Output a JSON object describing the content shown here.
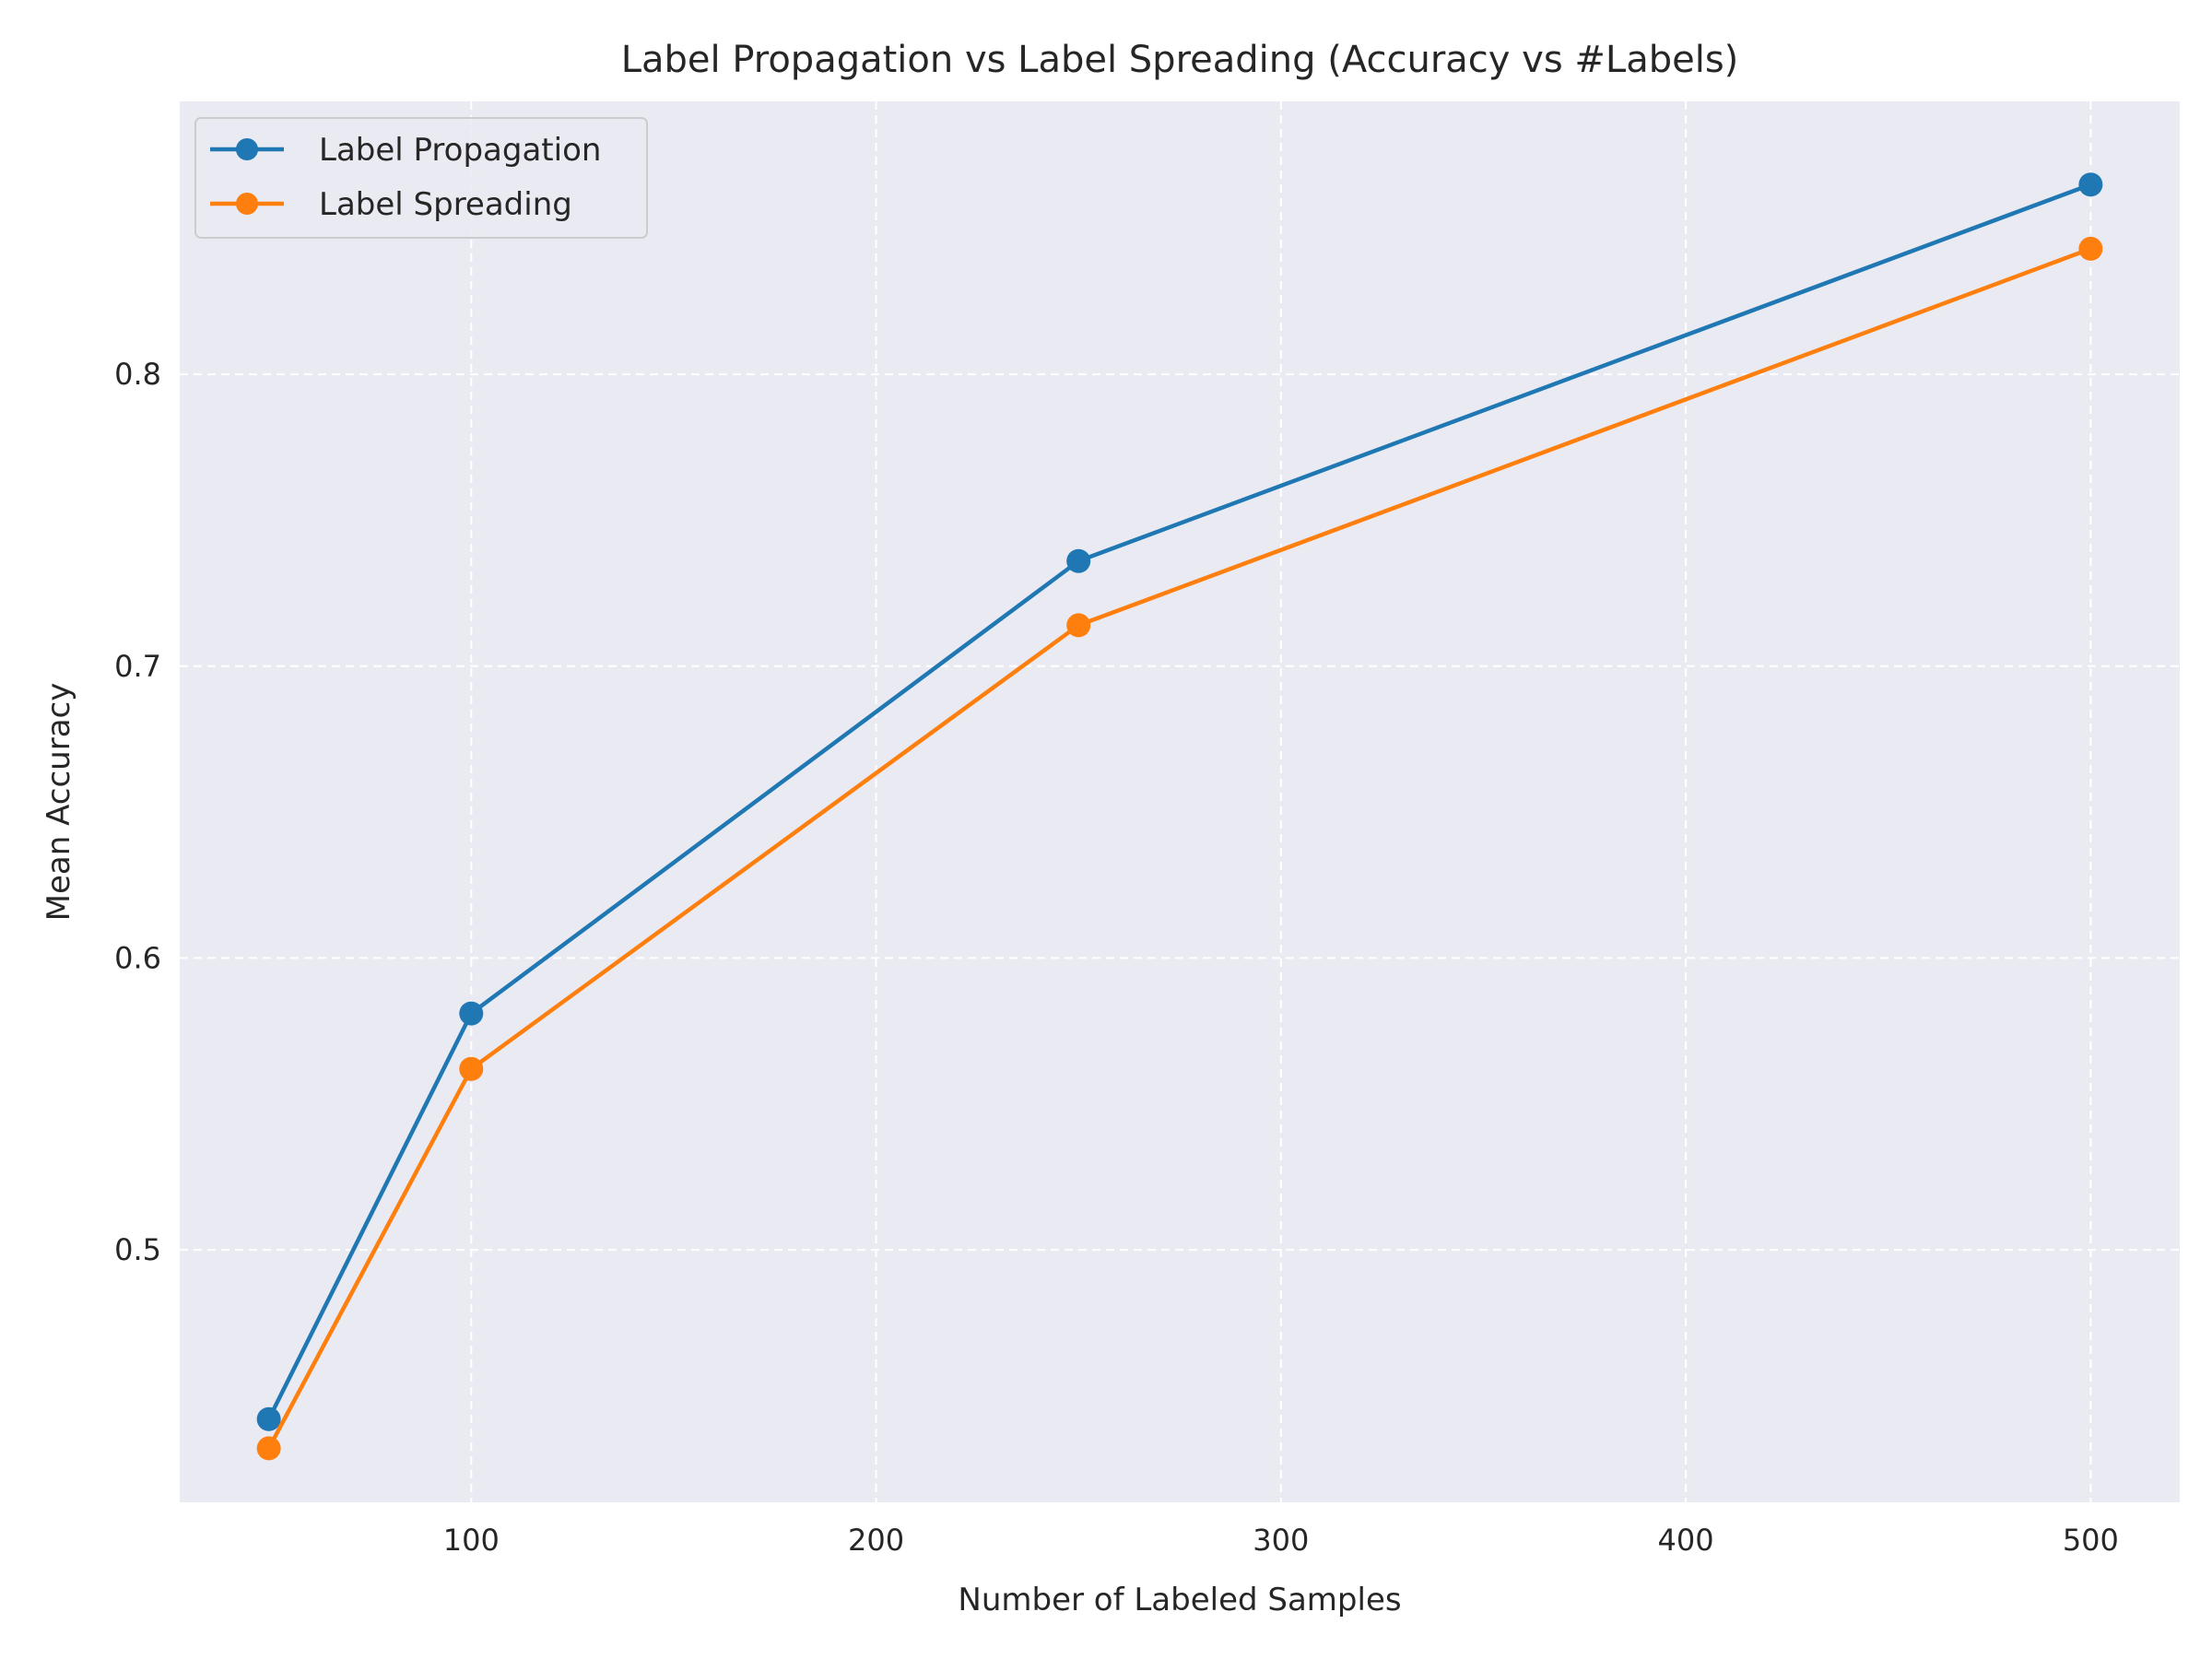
{
  "chart_data": {
    "type": "line",
    "title": "Label Propagation vs Label Spreading (Accuracy vs #Labels)",
    "xlabel": "Number of Labeled Samples",
    "ylabel": "Mean Accuracy",
    "x": [
      50,
      100,
      250,
      500
    ],
    "series": [
      {
        "name": "Label Propagation",
        "color": "#1f77b4",
        "values": [
          0.442,
          0.581,
          0.736,
          0.865
        ]
      },
      {
        "name": "Label Spreading",
        "color": "#ff7f0e",
        "values": [
          0.432,
          0.562,
          0.714,
          0.843
        ]
      }
    ],
    "xlim": [
      28,
      522
    ],
    "ylim": [
      0.4135,
      0.8935
    ],
    "xticks": [
      100,
      200,
      300,
      400,
      500
    ],
    "xtick_labels": [
      "100",
      "200",
      "300",
      "400",
      "500"
    ],
    "yticks": [
      0.5,
      0.6,
      0.7,
      0.8
    ],
    "ytick_labels": [
      "0.5",
      "0.6",
      "0.7",
      "0.8"
    ],
    "grid": true,
    "grid_style": "dashed",
    "plot_background": "#eaeaf2",
    "legend_position": "upper-left",
    "markers": "circle"
  }
}
